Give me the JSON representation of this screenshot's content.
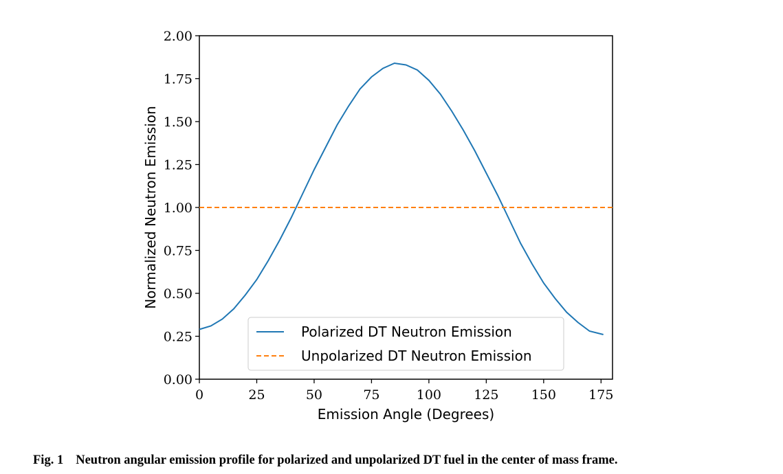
{
  "chart_data": {
    "type": "line",
    "title": "",
    "xlabel": "Emission Angle (Degrees)",
    "ylabel": "Normalized Neutron Emission",
    "xlim": [
      0,
      180
    ],
    "ylim": [
      0,
      2.0
    ],
    "xticks": [
      0,
      25,
      50,
      75,
      100,
      125,
      150,
      175
    ],
    "xtick_labels": [
      "0",
      "25",
      "50",
      "75",
      "100",
      "125",
      "150",
      "175"
    ],
    "yticks": [
      0,
      0.25,
      0.5,
      0.75,
      1.0,
      1.25,
      1.5,
      1.75,
      2.0
    ],
    "ytick_labels": [
      "0.00",
      "0.25",
      "0.50",
      "0.75",
      "1.00",
      "1.25",
      "1.50",
      "1.75",
      "2.00"
    ],
    "grid": false,
    "legend_position": "lower-center",
    "series": [
      {
        "name": "Polarized DT Neutron Emission",
        "color": "#1f77b4",
        "style": "solid",
        "x": [
          0,
          5,
          10,
          15,
          20,
          25,
          30,
          35,
          40,
          45,
          50,
          55,
          60,
          65,
          70,
          75,
          80,
          85,
          90,
          95,
          100,
          105,
          110,
          115,
          120,
          125,
          130,
          135,
          140,
          145,
          150,
          155,
          160,
          165,
          170,
          176
        ],
        "y": [
          0.29,
          0.31,
          0.35,
          0.41,
          0.49,
          0.58,
          0.69,
          0.81,
          0.94,
          1.08,
          1.22,
          1.35,
          1.48,
          1.59,
          1.69,
          1.76,
          1.81,
          1.84,
          1.83,
          1.8,
          1.74,
          1.66,
          1.56,
          1.45,
          1.33,
          1.2,
          1.07,
          0.93,
          0.79,
          0.67,
          0.56,
          0.47,
          0.39,
          0.33,
          0.28,
          0.26
        ]
      },
      {
        "name": "Unpolarized DT Neutron Emission",
        "color": "#ff7f0e",
        "style": "dashed",
        "x": [
          0,
          180
        ],
        "y": [
          1.0,
          1.0
        ]
      }
    ]
  },
  "caption": {
    "label": "Fig. 1",
    "text": "Neutron angular emission profile for polarized and unpolarized DT fuel in the center of mass frame."
  }
}
